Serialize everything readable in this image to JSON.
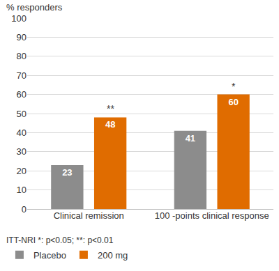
{
  "chart_data": {
    "type": "bar",
    "y_label": "% responders",
    "categories": [
      "Clinical remission",
      "100 -points clinical response"
    ],
    "series": [
      {
        "name": "Placebo",
        "color": "#8c8c8c",
        "values": [
          23,
          41
        ]
      },
      {
        "name": "200 mg",
        "color": "#e06c00",
        "values": [
          48,
          60
        ]
      }
    ],
    "ylim": [
      0,
      100
    ],
    "yticks": [
      0,
      10,
      20,
      30,
      40,
      50,
      60,
      70,
      80,
      90,
      100
    ],
    "grid": true,
    "data_labels": true,
    "legend": "bottom left",
    "annotations": [
      {
        "text": "**",
        "category": "Clinical remission",
        "series": "200 mg"
      },
      {
        "text": "*",
        "category": "100 -points clinical response",
        "series": "200 mg"
      }
    ],
    "footnote": "ITT-NRI *: p<0.05; **: p<0.01"
  }
}
